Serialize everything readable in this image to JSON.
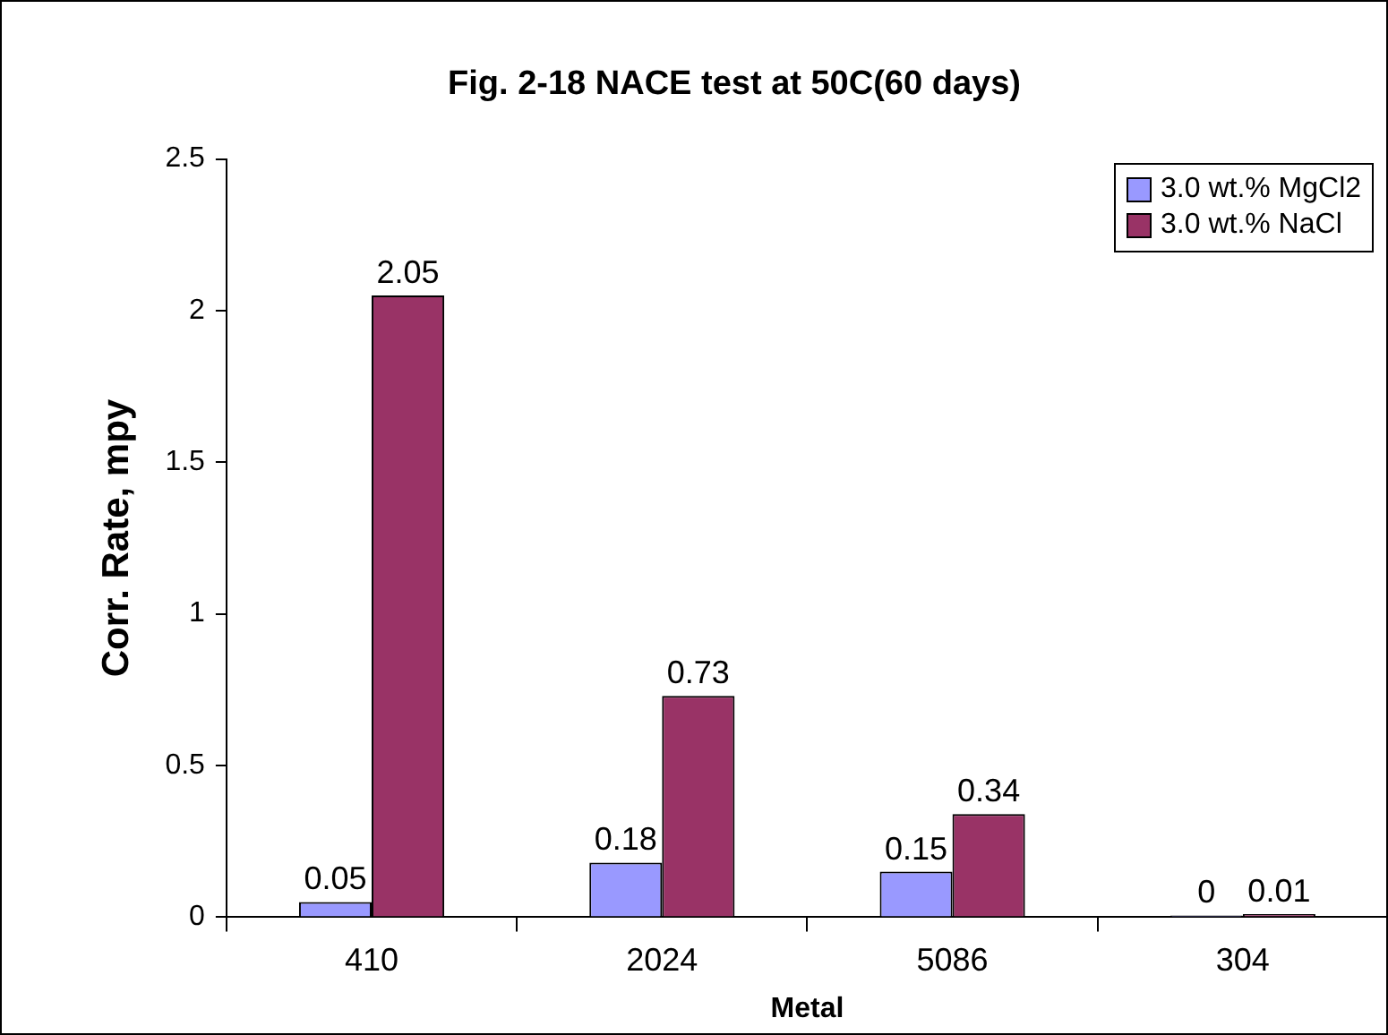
{
  "chart_data": {
    "type": "bar",
    "title": "Fig. 2-18 NACE test at 50C(60 days)",
    "xlabel": "Metal",
    "ylabel": "Corr. Rate, mpy",
    "categories": [
      "410",
      "2024",
      "5086",
      "304"
    ],
    "series": [
      {
        "name": "3.0 wt.% MgCl2",
        "color": "#9999ff",
        "values": [
          0.05,
          0.18,
          0.15,
          0
        ]
      },
      {
        "name": "3.0 wt.% NaCl",
        "color": "#993366",
        "values": [
          2.05,
          0.73,
          0.34,
          0.01
        ]
      }
    ],
    "ylim": [
      0,
      2.5
    ],
    "yticks": [
      0,
      0.5,
      1,
      1.5,
      2,
      2.5
    ],
    "grid": false,
    "legend": "top right",
    "data_labels": true
  }
}
